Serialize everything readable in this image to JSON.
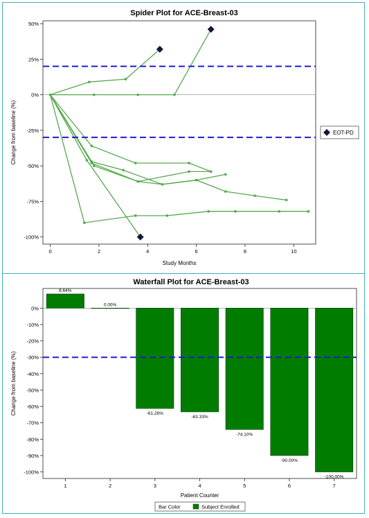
{
  "chart_data": [
    {
      "type": "line",
      "title": "Spider Plot for ACE-Breast-03",
      "xlabel": "Study Months",
      "ylabel": "Change from baseline (%)",
      "xlim": [
        -0.3,
        10.9
      ],
      "ylim": [
        -105,
        52
      ],
      "xticks": [
        0,
        2,
        4,
        6,
        8,
        10
      ],
      "yticks": [
        50,
        25,
        0,
        -25,
        -50,
        -75,
        -100
      ],
      "ytick_labels": [
        "50%",
        "25%",
        "0%",
        "-25%",
        "-50%",
        "-75%",
        "-100%"
      ],
      "reference_lines": [
        20,
        -30
      ],
      "legend": {
        "label": "EOT-PD",
        "placement": "right"
      },
      "series": [
        {
          "points": [
            [
              0,
              0
            ],
            [
              1.6,
              9
            ],
            [
              3.1,
              11
            ],
            [
              4.5,
              32
            ]
          ],
          "eot": true
        },
        {
          "points": [
            [
              0,
              0
            ],
            [
              1.8,
              0
            ],
            [
              3.6,
              0
            ],
            [
              5.1,
              0
            ],
            [
              6.6,
              46
            ]
          ],
          "eot": true
        },
        {
          "points": [
            [
              0,
              0
            ],
            [
              1.7,
              -36
            ],
            [
              3.5,
              -48
            ],
            [
              5.7,
              -48
            ],
            [
              6.6,
              -54
            ]
          ],
          "eot": false
        },
        {
          "points": [
            [
              0,
              0
            ],
            [
              1.7,
              -47
            ],
            [
              3.0,
              -53
            ],
            [
              4.6,
              -63
            ],
            [
              6.0,
              -60
            ],
            [
              7.2,
              -56
            ]
          ],
          "eot": false
        },
        {
          "points": [
            [
              0,
              0
            ],
            [
              1.8,
              -50
            ],
            [
              3.6,
              -61
            ],
            [
              5.7,
              -54
            ],
            [
              6.6,
              -54
            ]
          ],
          "eot": false
        },
        {
          "points": [
            [
              0,
              0
            ],
            [
              1.5,
              -46
            ],
            [
              3.7,
              -100
            ]
          ],
          "eot": true
        },
        {
          "points": [
            [
              0,
              0
            ],
            [
              1.4,
              -90
            ],
            [
              3.5,
              -85
            ],
            [
              4.8,
              -85
            ],
            [
              6.5,
              -82
            ],
            [
              7.6,
              -82
            ],
            [
              9.4,
              -82
            ],
            [
              10.6,
              -82
            ]
          ],
          "eot": false
        },
        {
          "points": [
            [
              0,
              0
            ],
            [
              1.7,
              -48
            ],
            [
              3.6,
              -61
            ],
            [
              4.6,
              -63
            ],
            [
              6.0,
              -60
            ],
            [
              7.2,
              -68
            ],
            [
              8.4,
              -71
            ],
            [
              9.7,
              -74
            ]
          ],
          "eot": false
        }
      ]
    },
    {
      "type": "bar",
      "title": "Waterfall Plot for ACE-Breast-03",
      "xlabel": "Patient Counter",
      "ylabel": "Change from baseline (%)",
      "ylim": [
        -104,
        12
      ],
      "yticks": [
        0,
        -10,
        -20,
        -30,
        -40,
        -50,
        -60,
        -70,
        -80,
        -90,
        -100
      ],
      "ytick_labels": [
        "0%",
        "-10%",
        "-20%",
        "-30%",
        "-40%",
        "-50%",
        "-60%",
        "-70%",
        "-80%",
        "-90%",
        "-100%"
      ],
      "reference_line": -30,
      "categories": [
        "1",
        "2",
        "3",
        "4",
        "5",
        "6",
        "7"
      ],
      "values": [
        8.64,
        0.0,
        -61.26,
        -63.33,
        -74.1,
        -90.0,
        -100.0
      ],
      "data_labels": [
        "8.64%",
        "0.00%",
        "-61.26%",
        "-63.33%",
        "-74.10%",
        "-90.00%",
        "-100.00%"
      ],
      "legend": {
        "title": "Bar Color",
        "label": "Subject Enrolled",
        "placement": "bottom"
      }
    }
  ],
  "colors": {
    "line": "#56a84e",
    "marker": "#141a33",
    "bar": "#007d00",
    "reference": "#1a1ad6",
    "frame": "#3cb0b5"
  }
}
